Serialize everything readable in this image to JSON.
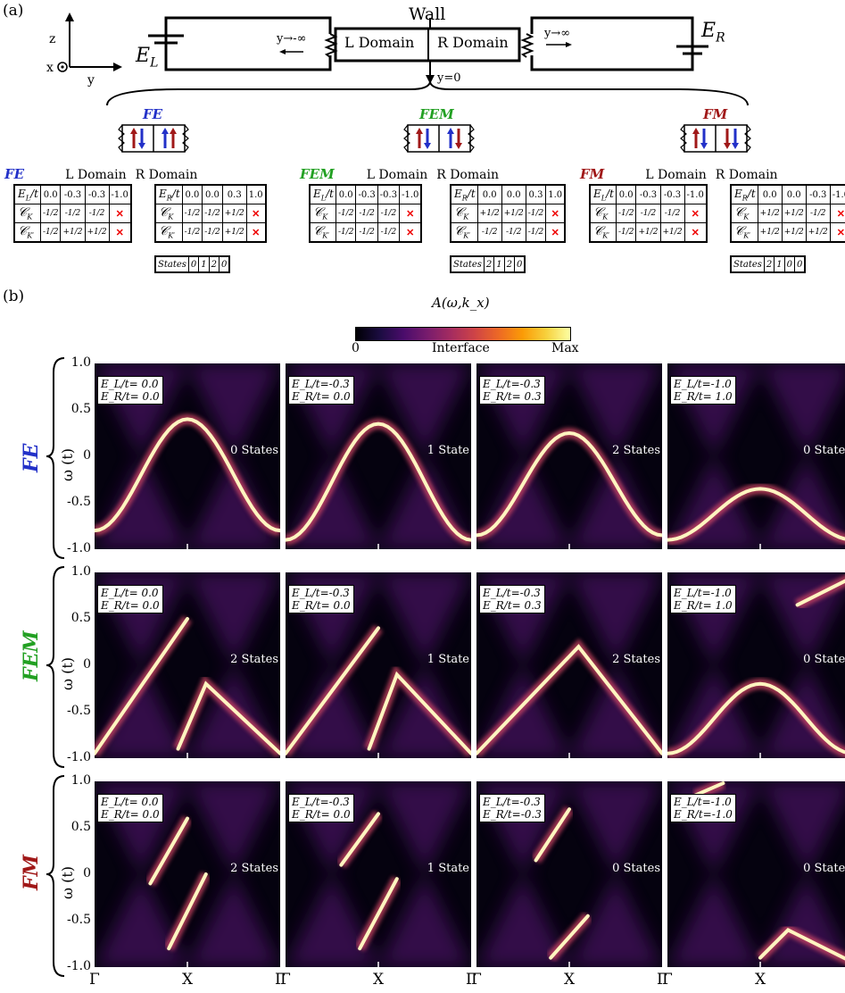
{
  "panel_a_label": "(a)",
  "panel_b_label": "(b)",
  "schematic": {
    "wall": "Wall",
    "l_domain": "L Domain",
    "r_domain": "R Domain",
    "y_left": "y→-∞",
    "y_right": "y→∞",
    "y0": "y=0",
    "axis_z": "z",
    "axis_x": "x",
    "axis_y": "y",
    "el_label": "E",
    "el_sub": "L",
    "er_label": "E",
    "er_sub": "R",
    "configs": [
      "FE",
      "FEM",
      "FM"
    ]
  },
  "colors": {
    "FE": "#2230c8",
    "FEM": "#22a022",
    "FM": "#a01818",
    "up_red": "#a01818",
    "down_blue": "#2230c8"
  },
  "tables": [
    {
      "tag": "FE",
      "l_title": "L Domain",
      "r_title": "R Domain",
      "el_row": {
        "label": "E_L/t",
        "values": [
          "0.0",
          "-0.3",
          "-0.3",
          "-1.0"
        ]
      },
      "lck": [
        "-1/2",
        "-1/2",
        "-1/2",
        "×"
      ],
      "lckp": [
        "-1/2",
        "+1/2",
        "+1/2",
        "×"
      ],
      "er_row": {
        "label": "E_R/t",
        "values": [
          "0.0",
          "0.0",
          "0.3",
          "1.0"
        ]
      },
      "rck": [
        "-1/2",
        "-1/2",
        "+1/2",
        "×"
      ],
      "rckp": [
        "-1/2",
        "-1/2",
        "+1/2",
        "×"
      ],
      "ck_label": "C_K",
      "ckp_label": "C_K'",
      "states_label": "States",
      "states": [
        "0",
        "1",
        "2",
        "0"
      ]
    },
    {
      "tag": "FEM",
      "l_title": "L Domain",
      "r_title": "R Domain",
      "el_row": {
        "label": "E_L/t",
        "values": [
          "0.0",
          "-0.3",
          "-0.3",
          "-1.0"
        ]
      },
      "lck": [
        "-1/2",
        "-1/2",
        "-1/2",
        "×"
      ],
      "lckp": [
        "-1/2",
        "-1/2",
        "-1/2",
        "×"
      ],
      "er_row": {
        "label": "E_R/t",
        "values": [
          "0.0",
          "0.0",
          "0.3",
          "1.0"
        ]
      },
      "rck": [
        "+1/2",
        "+1/2",
        "-1/2",
        "×"
      ],
      "rckp": [
        "-1/2",
        "-1/2",
        "-1/2",
        "×"
      ],
      "ck_label": "C_K",
      "ckp_label": "C_K'",
      "states_label": "States",
      "states": [
        "2",
        "1",
        "2",
        "0"
      ]
    },
    {
      "tag": "FM",
      "l_title": "L Domain",
      "r_title": "R Domain",
      "el_row": {
        "label": "E_L/t",
        "values": [
          "0.0",
          "-0.3",
          "-0.3",
          "-1.0"
        ]
      },
      "lck": [
        "-1/2",
        "-1/2",
        "-1/2",
        "×"
      ],
      "lckp": [
        "-1/2",
        "+1/2",
        "+1/2",
        "×"
      ],
      "er_row": {
        "label": "E_R/t",
        "values": [
          "0.0",
          "0.0",
          "-0.3",
          "-1.0"
        ]
      },
      "rck": [
        "+1/2",
        "+1/2",
        "-1/2",
        "×"
      ],
      "rckp": [
        "+1/2",
        "+1/2",
        "+1/2",
        "×"
      ],
      "ck_label": "C_K",
      "ckp_label": "C_K'",
      "states_label": "States",
      "states": [
        "2",
        "1",
        "0",
        "0"
      ]
    }
  ],
  "colorbar": {
    "title": "A(ω,k_x)",
    "min": "0",
    "mid": "Interface",
    "max": "Max"
  },
  "y_ticks": [
    "1.0",
    "0.5",
    "0",
    "-0.5",
    "-1.0"
  ],
  "y_axis_label": "ω (t)",
  "x_ticks": [
    "Γ",
    "X",
    "Γ"
  ],
  "rows": [
    {
      "name": "FE",
      "panels": [
        {
          "el": "E_L/t= 0.0",
          "er": "E_R/t= 0.0",
          "states": "0 States"
        },
        {
          "el": "E_L/t=-0.3",
          "er": "E_R/t= 0.0",
          "states": "1 State"
        },
        {
          "el": "E_L/t=-0.3",
          "er": "E_R/t= 0.3",
          "states": "2 States"
        },
        {
          "el": "E_L/t=-1.0",
          "er": "E_R/t= 1.0",
          "states": "0 States"
        }
      ]
    },
    {
      "name": "FEM",
      "panels": [
        {
          "el": "E_L/t= 0.0",
          "er": "E_R/t= 0.0",
          "states": "2 States"
        },
        {
          "el": "E_L/t=-0.3",
          "er": "E_R/t= 0.0",
          "states": "1 State"
        },
        {
          "el": "E_L/t=-0.3",
          "er": "E_R/t= 0.3",
          "states": "2 States"
        },
        {
          "el": "E_L/t=-1.0",
          "er": "E_R/t= 1.0",
          "states": "0 States"
        }
      ]
    },
    {
      "name": "FM",
      "panels": [
        {
          "el": "E_L/t= 0.0",
          "er": "E_R/t= 0.0",
          "states": "2 States"
        },
        {
          "el": "E_L/t=-0.3",
          "er": "E_R/t= 0.0",
          "states": "1 State"
        },
        {
          "el": "E_L/t=-0.3",
          "er": "E_R/t=-0.3",
          "states": "0 States"
        },
        {
          "el": "E_L/t=-1.0",
          "er": "E_R/t=-1.0",
          "states": "0 States"
        }
      ]
    }
  ]
}
